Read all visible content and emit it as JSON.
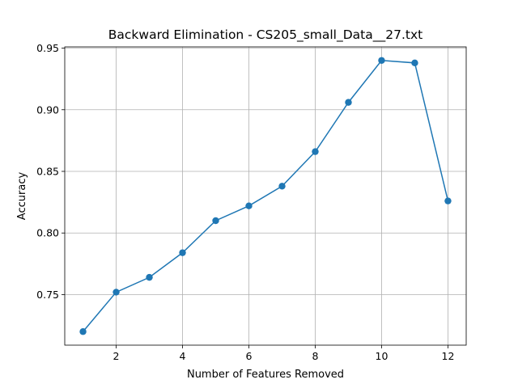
{
  "chart_data": {
    "type": "line",
    "title": "Backward Elimination - CS205_small_Data__27.txt",
    "xlabel": "Number of Features Removed",
    "ylabel": "Accuracy",
    "xlim": [
      0.45,
      12.55
    ],
    "ylim": [
      0.709,
      0.951
    ],
    "xticks": [
      2,
      4,
      6,
      8,
      10,
      12
    ],
    "yticks": [
      0.75,
      0.8,
      0.85,
      0.9,
      0.95
    ],
    "ytick_labels": [
      "0.75",
      "0.80",
      "0.85",
      "0.90",
      "0.95"
    ],
    "grid": true,
    "series": [
      {
        "color": "#1f77b4",
        "marker": "circle",
        "x": [
          1,
          2,
          3,
          4,
          5,
          6,
          7,
          8,
          9,
          10,
          11,
          12
        ],
        "y": [
          0.72,
          0.752,
          0.764,
          0.784,
          0.81,
          0.822,
          0.838,
          0.866,
          0.906,
          0.94,
          0.938,
          0.826
        ]
      }
    ]
  }
}
